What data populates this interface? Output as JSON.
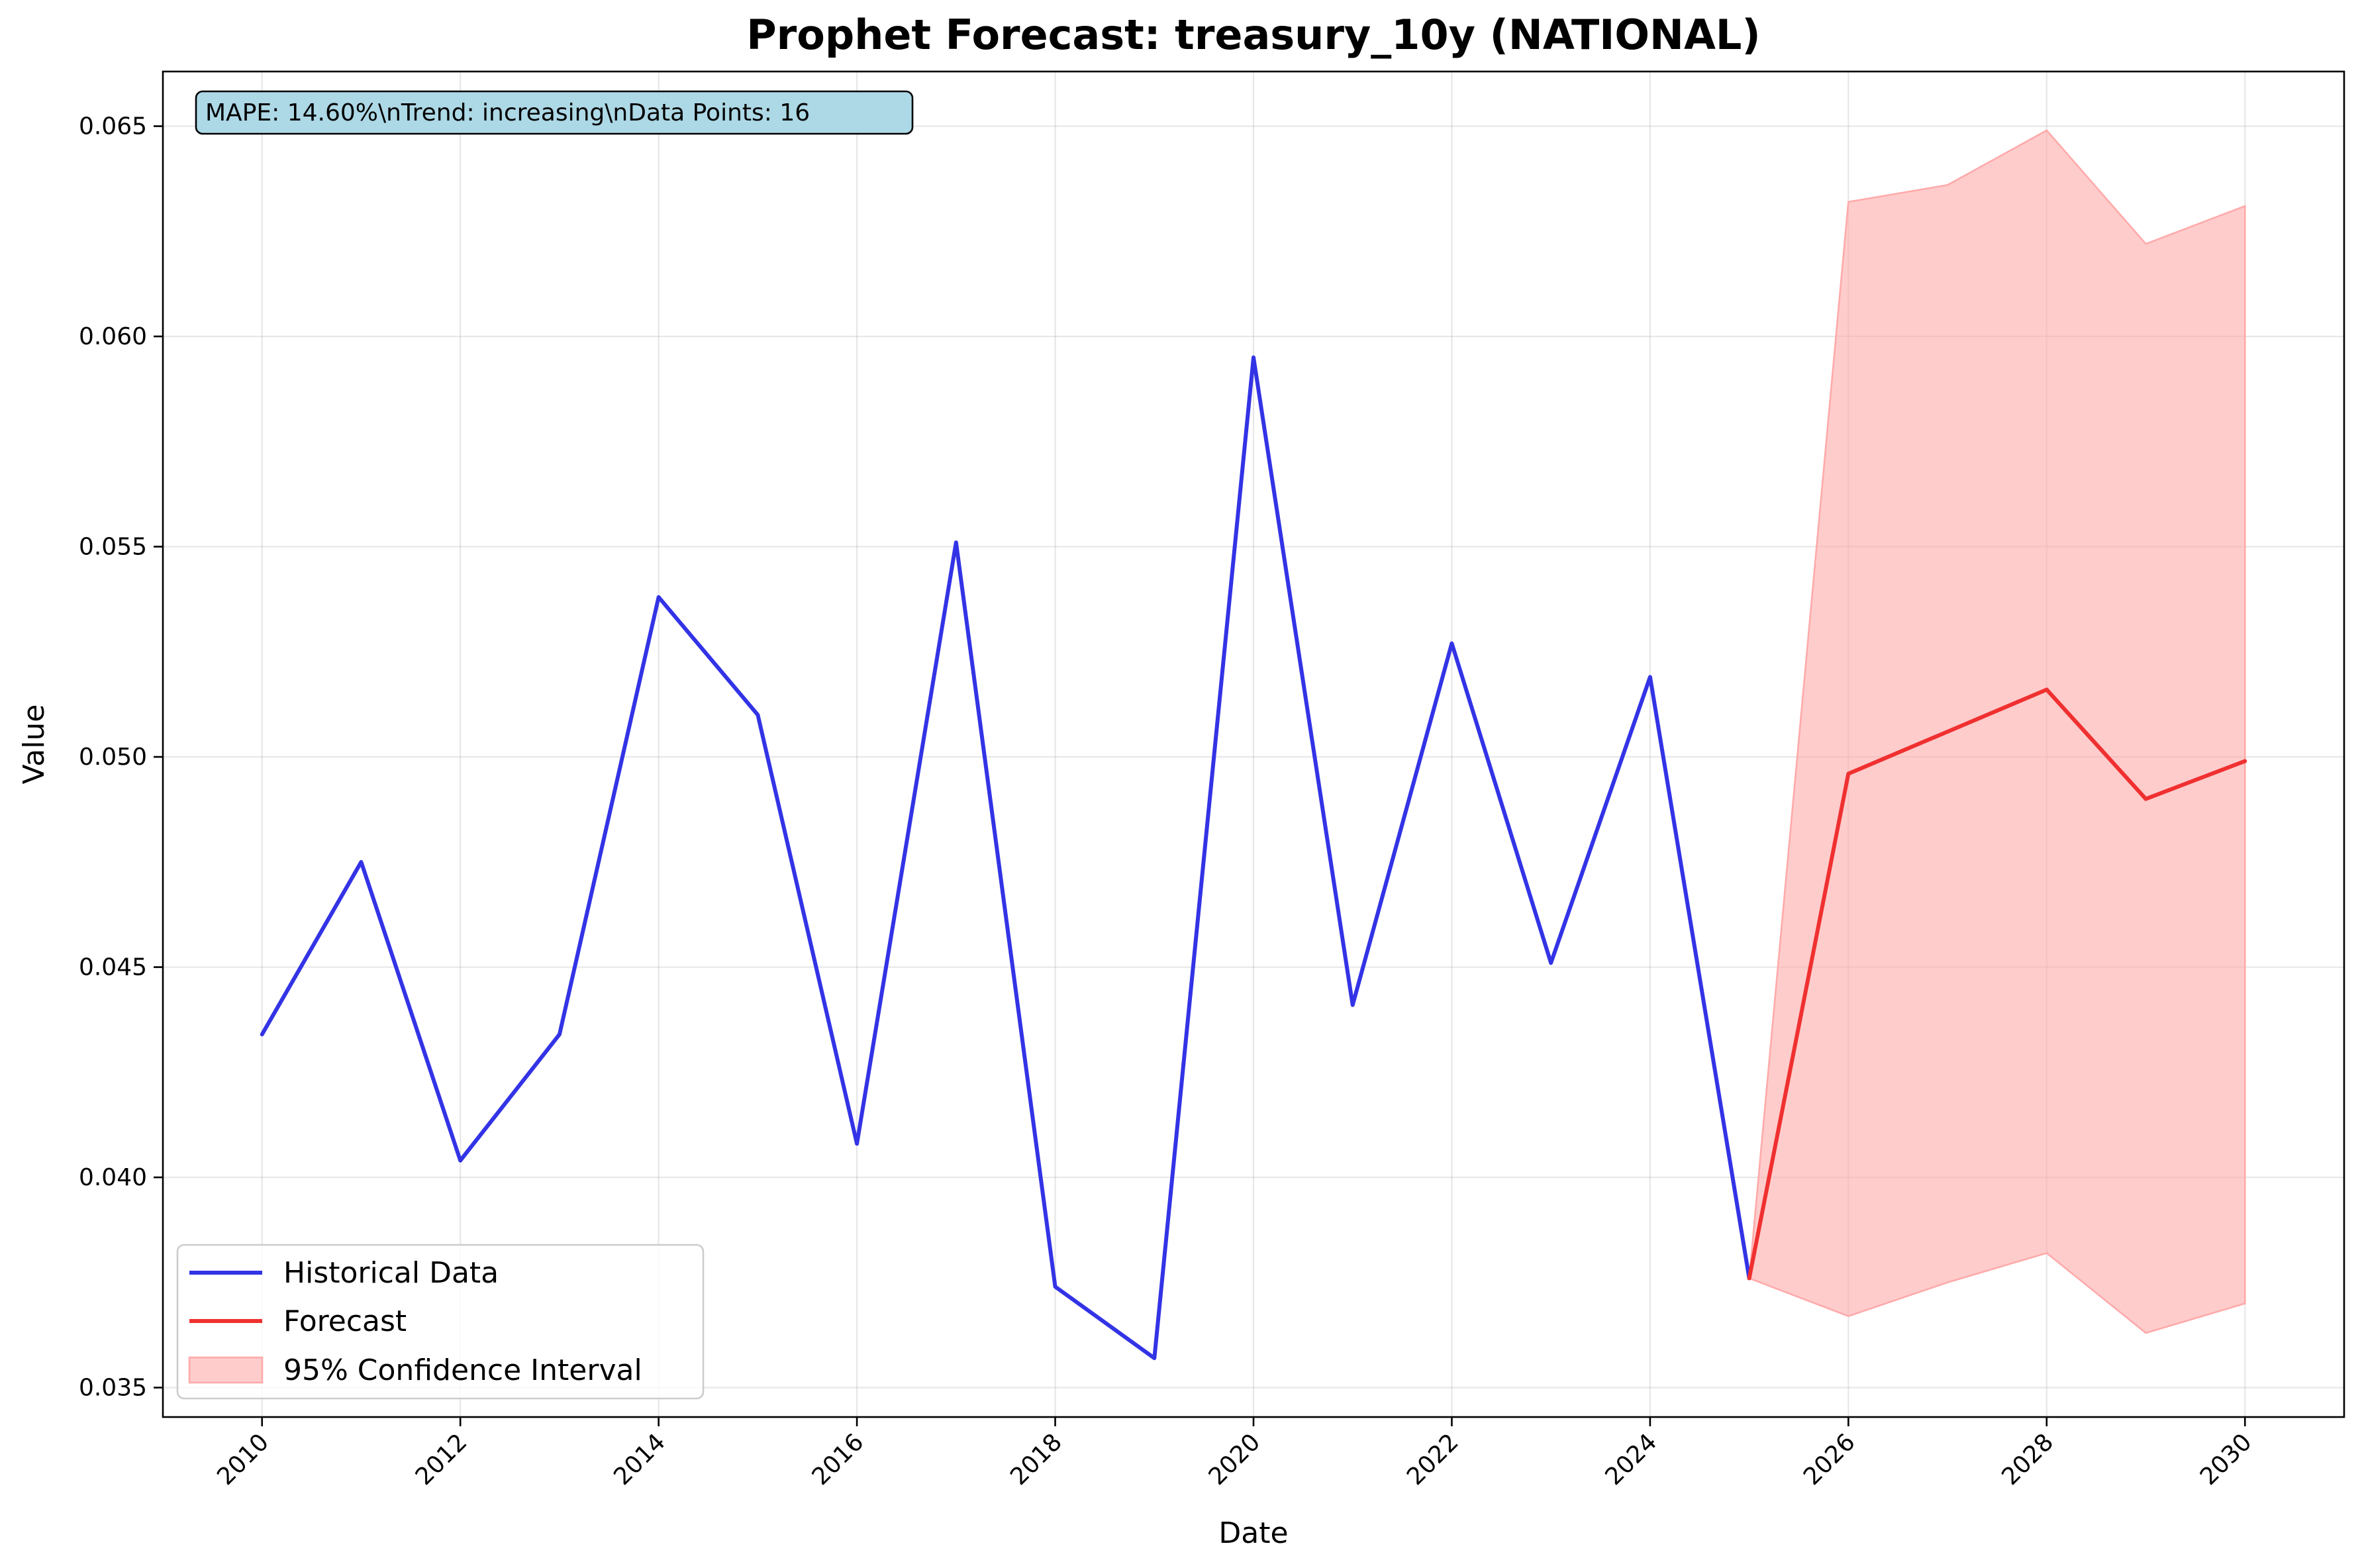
{
  "chart_data": {
    "type": "line",
    "title": "Prophet Forecast: treasury_10y (NATIONAL)",
    "xlabel": "Date",
    "ylabel": "Value",
    "xlim": [
      2009.0,
      2031.0
    ],
    "ylim": [
      0.0343,
      0.0663
    ],
    "x_ticks": [
      "2010",
      "2012",
      "2014",
      "2016",
      "2018",
      "2020",
      "2022",
      "2024",
      "2026",
      "2028",
      "2030"
    ],
    "y_ticks": [
      "0.035",
      "0.040",
      "0.045",
      "0.050",
      "0.055",
      "0.060",
      "0.065"
    ],
    "grid": true,
    "legend_position": "lower-left",
    "annotation": "MAPE: 14.60%\\nTrend: increasing\\nData Points: 16",
    "series": [
      {
        "name": "Historical Data",
        "color": "#3333e6",
        "x": [
          2010,
          2011,
          2012,
          2013,
          2014,
          2015,
          2016,
          2017,
          2018,
          2019,
          2020,
          2021,
          2022,
          2023,
          2024,
          2025
        ],
        "y": [
          0.0434,
          0.0475,
          0.0404,
          0.0434,
          0.0538,
          0.051,
          0.0408,
          0.0551,
          0.0374,
          0.0357,
          0.0595,
          0.0441,
          0.0527,
          0.0451,
          0.0519,
          0.0376
        ]
      },
      {
        "name": "Forecast",
        "color": "#f03030",
        "x": [
          2025,
          2026,
          2027,
          2028,
          2029,
          2030
        ],
        "y": [
          0.0376,
          0.0496,
          0.0506,
          0.0516,
          0.049,
          0.0499
        ]
      }
    ],
    "confidence_interval": {
      "name": "95% Confidence Interval",
      "color": "#ffaaaa",
      "x": [
        2025,
        2026,
        2027,
        2028,
        2029,
        2030
      ],
      "lower": [
        0.0376,
        0.0367,
        0.0375,
        0.0382,
        0.0363,
        0.037
      ],
      "upper": [
        0.0376,
        0.0632,
        0.0636,
        0.0649,
        0.0622,
        0.0631
      ]
    }
  }
}
